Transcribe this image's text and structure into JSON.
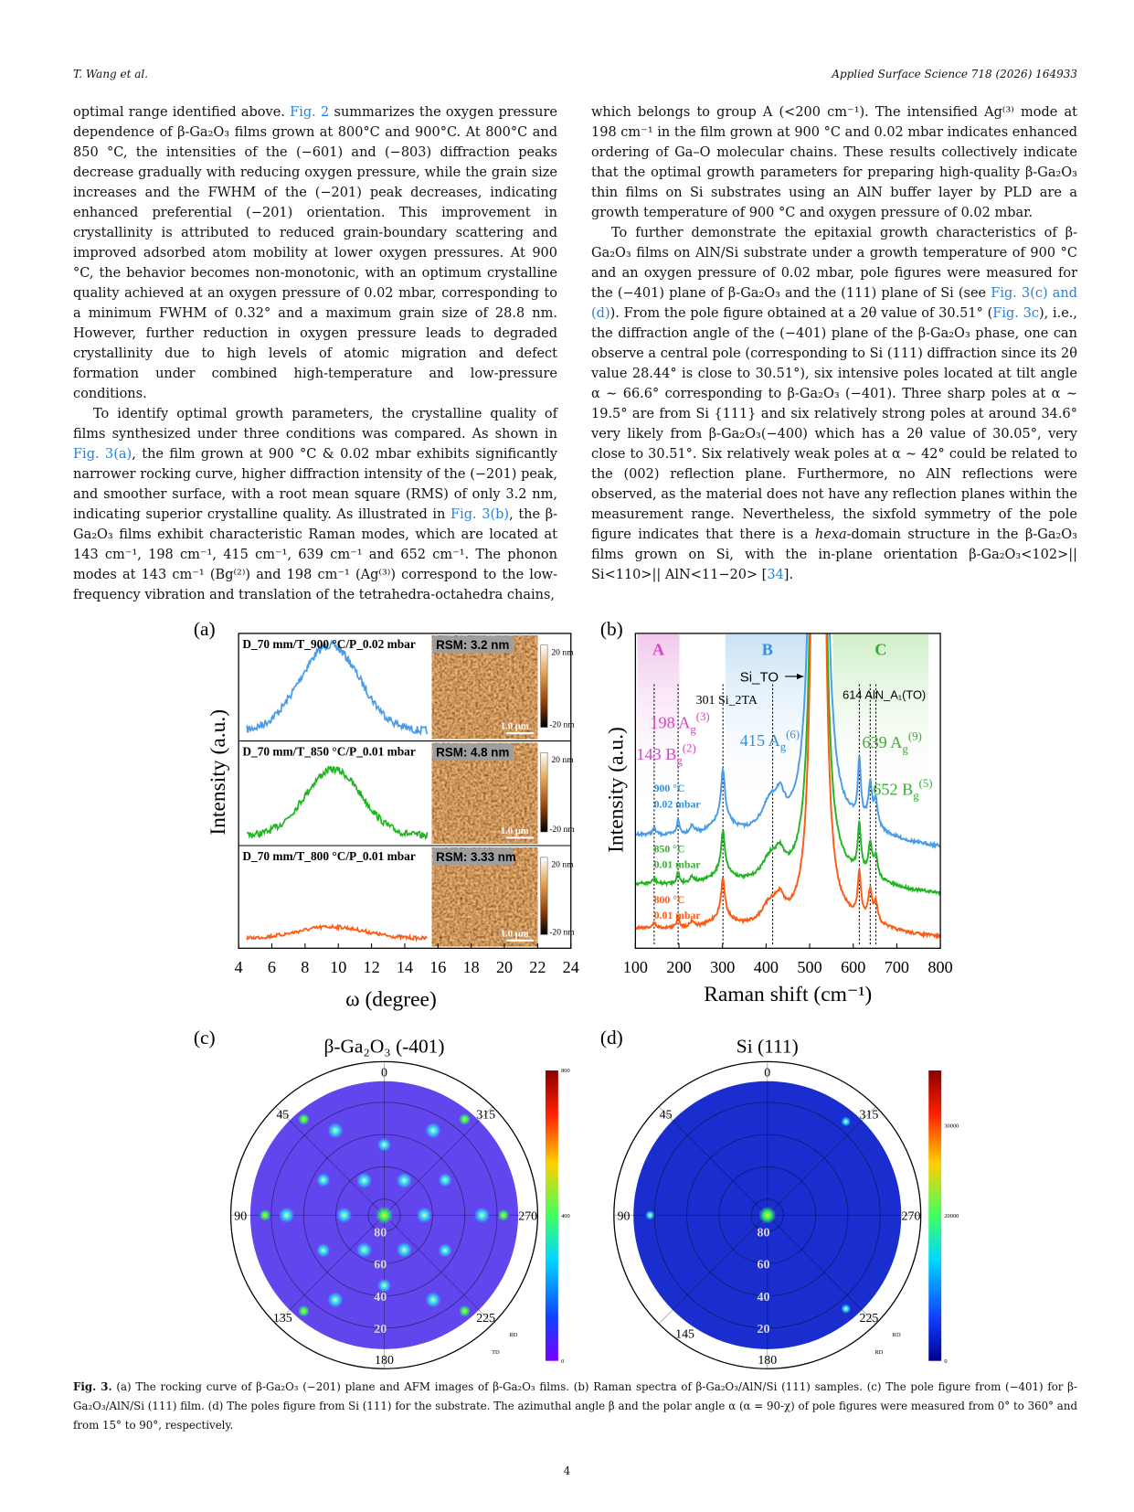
{
  "header": {
    "left": "T. Wang et al.",
    "right": "Applied Surface Science 718 (2026) 164933"
  },
  "body": {
    "left": [
      [
        {
          "text": "optimal range identified above. "
        },
        {
          "ref": "Fig. 2"
        },
        {
          "text": " summarizes the oxygen pressure dependence of β-Ga₂O₃ films grown at 800°C and 900°C. At 800°C and 850 °C, the intensities of the (−601) and (−803) diffraction peaks decrease gradually with reducing oxygen pressure, while the grain size increases and the FWHM of the (−201) peak decreases, indicating enhanced preferential (−201) orientation. This improvement in crystallinity is attributed to reduced grain-boundary scattering and improved adsorbed atom mobility at lower oxygen pressures. At 900 °C, the behavior becomes non-monotonic, with an optimum crystalline quality achieved at an oxygen pressure of 0.02 mbar, corresponding to a minimum FWHM of 0.32° and a maximum grain size of 28.8 nm. However, further reduction in oxygen pressure leads to degraded crystallinity due to high levels of atomic migration and defect formation under combined high-temperature and low-pressure conditions."
        }
      ],
      [
        {
          "text": "To identify optimal growth parameters, the crystalline quality of films synthesized under three conditions was compared. As shown in "
        },
        {
          "ref": "Fig. 3(a)"
        },
        {
          "text": ", the film grown at 900 °C & 0.02 mbar exhibits significantly narrower rocking curve, higher diffraction intensity of the (−201) peak, and smoother surface, with a root mean square (RMS) of only 3.2 nm, indicating superior crystalline quality. As illustrated in "
        },
        {
          "ref": "Fig. 3(b)"
        },
        {
          "text": ", the β-Ga₂O₃ films exhibit characteristic Raman modes, which are located at 143 cm⁻¹, 198 cm⁻¹, 415 cm⁻¹, 639 cm⁻¹ and 652 cm⁻¹. The phonon modes at 143 cm⁻¹ (Bg⁽²⁾) and 198 cm⁻¹ (Ag⁽³⁾) correspond to the low-frequency vibration and translation of the tetrahedra-octahedra chains,"
        }
      ]
    ],
    "right": [
      [
        {
          "text": "which belongs to group A (<200 cm⁻¹). The intensified Ag⁽³⁾ mode at 198 cm⁻¹ in the film grown at 900 °C and 0.02 mbar indicates enhanced ordering of Ga–O molecular chains. These results collectively indicate that the optimal growth parameters for preparing high-quality β-Ga₂O₃ thin films on Si substrates using an AlN buffer layer by PLD are a growth temperature of 900 °C and oxygen pressure of 0.02 mbar."
        }
      ],
      [
        {
          "text": "To further demonstrate the epitaxial growth characteristics of β-Ga₂O₃ films on AlN/Si substrate under a growth temperature of 900 °C and an oxygen pressure of 0.02 mbar, pole figures were measured for the (−401) plane of β-Ga₂O₃ and the (111) plane of Si (see "
        },
        {
          "ref": "Fig. 3(c) and (d)"
        },
        {
          "text": "). From the pole figure obtained at a 2θ value of 30.51° ("
        },
        {
          "ref": "Fig. 3c"
        },
        {
          "text": "), i.e., the diffraction angle of the (−401) plane of the β-Ga₂O₃ phase, one can observe a central pole (corresponding to Si (111) diffraction since its 2θ value 28.44° is close to 30.51°), six intensive poles located at tilt angle α ∼ 66.6° corresponding to β-Ga₂O₃ (−401). Three sharp poles at α ∼ 19.5° are from Si {111} and six relatively strong poles at around 34.6° very likely from β-Ga₂O₃(−400) which has a 2θ value of 30.05°, very close to 30.51°. Six relatively weak poles at α ∼ 42° could be related to the (002) reflection plane. Furthermore, no AlN reflections were observed, as the material does not have any reflection planes within the measurement range. Nevertheless, the sixfold symmetry of the pole figure indicates that there is a "
        },
        {
          "em": "hexa"
        },
        {
          "text": "-domain structure in the β-Ga₂O₃ films grown on Si, with the in-plane orientation β-Ga₂O₃<102>|| Si<110>|| AlN<11−20> ["
        },
        {
          "ref": "34"
        },
        {
          "text": "]."
        }
      ]
    ]
  },
  "figure": {
    "panel_a": {
      "label": "(a)",
      "rows": [
        {
          "condition": "D_70 mm/T_900 °C/P_0.02 mbar",
          "rsm": "RSM: 3.2 nm",
          "scale_top": "20 nm",
          "scale_bottom": "-20 nm",
          "scalebar": "1.0 μm"
        },
        {
          "condition": "D_70 mm/T_850 °C/P_0.01 mbar",
          "rsm": "RSM: 4.8 nm",
          "scale_top": "20 nm",
          "scale_bottom": "-20 nm",
          "scalebar": "1.0 μm"
        },
        {
          "condition": "D_70 mm/T_800 °C/P_0.01 mbar",
          "rsm": "RSM: 3.33 nm",
          "scale_top": "20 nm",
          "scale_bottom": "-20 nm",
          "scalebar": "1.0 μm"
        }
      ],
      "xticks": [
        4,
        6,
        8,
        10,
        12,
        14,
        16,
        18,
        20,
        22,
        24
      ],
      "xlabel": "ω (degree)",
      "ylabel": "Intensity (a.u.)"
    },
    "panel_b": {
      "label": "(b)",
      "regions": [
        "A",
        "B",
        "C"
      ],
      "annotations": [
        "Si_TO",
        "301 Si_2TA",
        "614 AlN_A₁(TO)"
      ],
      "modes": [
        {
          "main": "198 A",
          "sub": "g",
          "sup": "(3)"
        },
        {
          "main": "143 B",
          "sub": "g",
          "sup": "(2)"
        },
        {
          "main": "415 A",
          "sub": "g",
          "sup": "(6)"
        },
        {
          "main": "639 A",
          "sub": "g",
          "sup": "(9)"
        },
        {
          "main": "652  B",
          "sub": "g",
          "sup": "(5)"
        }
      ],
      "conditions": [
        [
          "900 °C",
          "0.02 mbar"
        ],
        [
          "850 °C",
          "0.01 mbar"
        ],
        [
          "800 °C",
          "0.01 mbar"
        ]
      ],
      "xticks": [
        100,
        200,
        300,
        400,
        500,
        600,
        700,
        800
      ],
      "xlabel": "Raman shift (cm⁻¹)",
      "ylabel": "Intensity (a.u.)"
    },
    "panel_c": {
      "label": "(c)",
      "title": "β-Ga₂O₃ (-401)",
      "azimuths": [
        0,
        45,
        315,
        90,
        270,
        135,
        225,
        180
      ],
      "tilts": [
        80,
        60,
        40,
        20
      ],
      "colorbar": [
        800,
        400,
        0
      ],
      "axes": [
        "RD",
        "TD"
      ]
    },
    "panel_d": {
      "label": "(d)",
      "title": "Si (111)",
      "azimuths": [
        0,
        45,
        315,
        90,
        270,
        145,
        225,
        180
      ],
      "tilts": [
        80,
        60,
        40,
        20
      ],
      "colorbar": [
        30000,
        20000,
        0
      ],
      "axes": [
        "RD",
        "RD"
      ]
    }
  },
  "caption": {
    "label": "Fig. 3.",
    "text": " (a) The rocking curve of β-Ga₂O₃ (−201) plane and AFM images of β-Ga₂O₃ films. (b) Raman spectra of β-Ga₂O₃/AlN/Si (111) samples. (c) The pole figure from (−401) for β-Ga₂O₃/AlN/Si (111) film. (d) The poles figure from Si (111) for the substrate. The azimuthal angle β and the polar angle α (α = 90-χ) of pole figures were measured from 0° to 360° and from 15° to 90°, respectively."
  },
  "page_number": "4"
}
